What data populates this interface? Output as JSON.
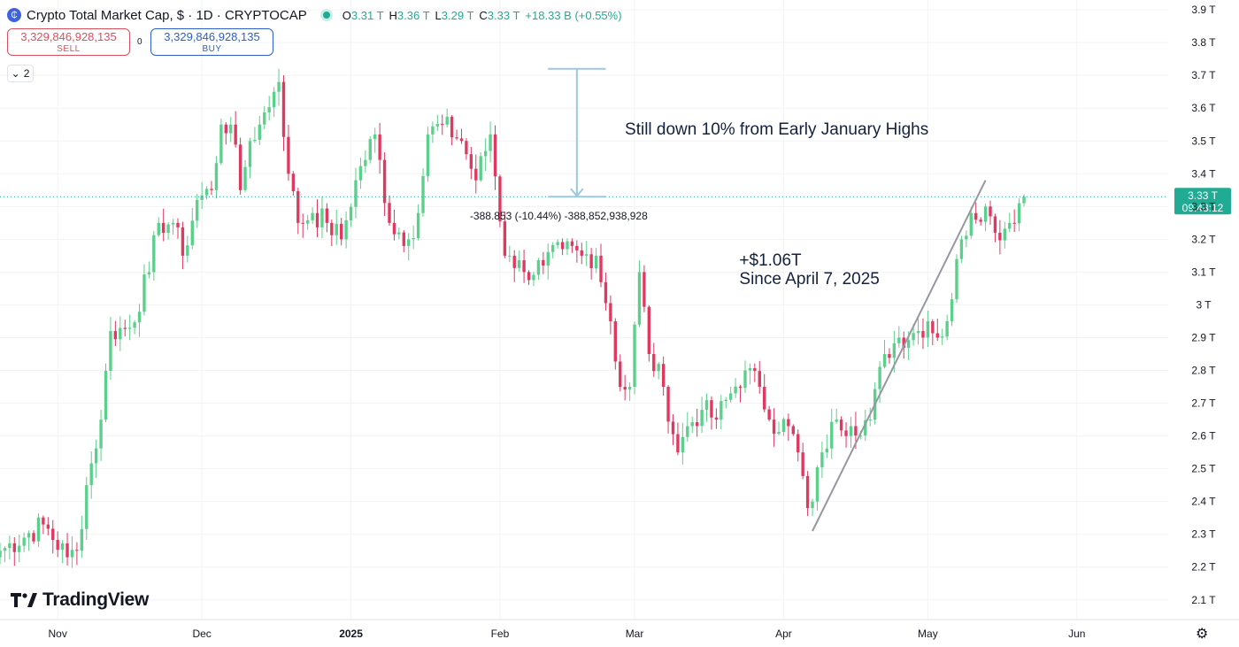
{
  "header": {
    "symbol_title": "Crypto Total Market Cap, $ · 1D · CRYPTOCAP",
    "open_label": "O",
    "open": "3.31 T",
    "high_label": "H",
    "high": "3.36 T",
    "low_label": "L",
    "low": "3.29 T",
    "close_label": "C",
    "close": "3.33 T",
    "change": "+18.33 B (+0.55%)"
  },
  "trade": {
    "sell_value": "3,329,846,928,135",
    "sell_label": "SELL",
    "spread": "0",
    "buy_value": "3,329,846,928,135",
    "buy_label": "BUY"
  },
  "indicators_count": "2",
  "logo_text": "TradingView",
  "colors": {
    "up": "#5bd08a",
    "down": "#e0385f",
    "price_line": "#22ab94",
    "annotation": "#14213d",
    "measure": "#9cc8e0"
  },
  "chart_data": {
    "type": "candlestick",
    "x_range": [
      "2024-10-20",
      "2025-06-20"
    ],
    "y_range": [
      2.04,
      3.93
    ],
    "y_ticks": [
      2.1,
      2.2,
      2.3,
      2.4,
      2.5,
      2.6,
      2.7,
      2.8,
      2.9,
      3.0,
      3.1,
      3.2,
      3.3,
      3.4,
      3.5,
      3.6,
      3.7,
      3.8,
      3.9
    ],
    "y_tick_labels": [
      "2.1 T",
      "2.2 T",
      "2.3 T",
      "2.4 T",
      "2.5 T",
      "2.6 T",
      "2.7 T",
      "2.8 T",
      "2.9 T",
      "3 T",
      "3.1 T",
      "3.2 T",
      "3.3 T",
      "3.4 T",
      "3.5 T",
      "3.6 T",
      "3.7 T",
      "3.8 T",
      "3.9 T"
    ],
    "x_ticks": [
      {
        "date": "2024-11-01",
        "label": "Nov"
      },
      {
        "date": "2024-12-01",
        "label": "Dec"
      },
      {
        "date": "2025-01-01",
        "label": "2025"
      },
      {
        "date": "2025-02-01",
        "label": "Feb"
      },
      {
        "date": "2025-03-01",
        "label": "Mar"
      },
      {
        "date": "2025-04-01",
        "label": "Apr"
      },
      {
        "date": "2025-05-01",
        "label": "May"
      },
      {
        "date": "2025-06-01",
        "label": "Jun"
      }
    ],
    "anchors": [
      [
        "2024-10-20",
        2.25
      ],
      [
        "2024-10-29",
        2.33
      ],
      [
        "2024-11-03",
        2.23
      ],
      [
        "2024-11-05",
        2.25
      ],
      [
        "2024-11-07",
        2.45
      ],
      [
        "2024-11-10",
        2.65
      ],
      [
        "2024-11-12",
        2.92
      ],
      [
        "2024-11-16",
        2.93
      ],
      [
        "2024-11-20",
        3.1
      ],
      [
        "2024-11-22",
        3.25
      ],
      [
        "2024-11-25",
        3.25
      ],
      [
        "2024-11-27",
        3.15
      ],
      [
        "2024-11-30",
        3.32
      ],
      [
        "2024-12-03",
        3.35
      ],
      [
        "2024-12-05",
        3.55
      ],
      [
        "2024-12-07",
        3.55
      ],
      [
        "2024-12-09",
        3.35
      ],
      [
        "2024-12-11",
        3.5
      ],
      [
        "2024-12-13",
        3.55
      ],
      [
        "2024-12-16",
        3.65
      ],
      [
        "2024-12-17",
        3.68
      ],
      [
        "2024-12-19",
        3.4
      ],
      [
        "2024-12-21",
        3.25
      ],
      [
        "2024-12-24",
        3.28
      ],
      [
        "2024-12-27",
        3.25
      ],
      [
        "2024-12-30",
        3.2
      ],
      [
        "2025-01-02",
        3.38
      ],
      [
        "2025-01-06",
        3.52
      ],
      [
        "2025-01-09",
        3.25
      ],
      [
        "2025-01-13",
        3.2
      ],
      [
        "2025-01-15",
        3.28
      ],
      [
        "2025-01-17",
        3.52
      ],
      [
        "2025-01-20",
        3.55
      ],
      [
        "2025-01-24",
        3.5
      ],
      [
        "2025-01-27",
        3.38
      ],
      [
        "2025-01-30",
        3.52
      ],
      [
        "2025-02-02",
        3.15
      ],
      [
        "2025-02-03",
        3.15
      ],
      [
        "2025-02-06",
        3.1
      ],
      [
        "2025-02-10",
        3.12
      ],
      [
        "2025-02-14",
        3.17
      ],
      [
        "2025-02-18",
        3.15
      ],
      [
        "2025-02-21",
        3.15
      ],
      [
        "2025-02-24",
        2.95
      ],
      [
        "2025-02-26",
        2.75
      ],
      [
        "2025-02-28",
        2.75
      ],
      [
        "2025-03-02",
        3.1
      ],
      [
        "2025-03-04",
        2.85
      ],
      [
        "2025-03-07",
        2.75
      ],
      [
        "2025-03-10",
        2.55
      ],
      [
        "2025-03-12",
        2.63
      ],
      [
        "2025-03-15",
        2.68
      ],
      [
        "2025-03-18",
        2.65
      ],
      [
        "2025-03-21",
        2.73
      ],
      [
        "2025-03-24",
        2.8
      ],
      [
        "2025-03-27",
        2.75
      ],
      [
        "2025-03-29",
        2.65
      ],
      [
        "2025-04-02",
        2.63
      ],
      [
        "2025-04-04",
        2.55
      ],
      [
        "2025-04-06",
        2.38
      ],
      [
        "2025-04-07",
        2.4
      ],
      [
        "2025-04-09",
        2.55
      ],
      [
        "2025-04-12",
        2.65
      ],
      [
        "2025-04-15",
        2.63
      ],
      [
        "2025-04-19",
        2.65
      ],
      [
        "2025-04-22",
        2.85
      ],
      [
        "2025-04-25",
        2.9
      ],
      [
        "2025-04-29",
        2.92
      ],
      [
        "2025-05-01",
        2.95
      ],
      [
        "2025-05-03",
        2.9
      ],
      [
        "2025-05-05",
        2.95
      ],
      [
        "2025-05-08",
        3.2
      ],
      [
        "2025-05-10",
        3.28
      ],
      [
        "2025-05-13",
        3.3
      ],
      [
        "2025-05-15",
        3.22
      ],
      [
        "2025-05-18",
        3.25
      ],
      [
        "2025-05-20",
        3.31
      ],
      [
        "2025-05-21",
        3.33
      ]
    ],
    "last_price_label": "3.33 T",
    "countdown_label": "09:48:12",
    "last_price": 3.33,
    "measure": {
      "top_price": 3.72,
      "bottom_price": 3.33,
      "date_start": "2025-02-11",
      "date_end": "2025-02-23",
      "label_date": "2025-02-01",
      "label_value": "-388.853 (-10.44%) -388,852,938,928"
    },
    "trendline": {
      "from": [
        "2025-04-07",
        2.31
      ],
      "to": [
        "2025-05-13",
        3.38
      ]
    },
    "annotations": [
      {
        "text": "Still down 10% from Early January Highs",
        "date": "2025-03-01",
        "price": 3.52,
        "lines": [
          "Still down 10% from Early January Highs"
        ]
      },
      {
        "text": "+$1.06T Since April 7, 2025",
        "date": "2025-03-25",
        "price": 3.12,
        "lines": [
          "+$1.06T",
          "Since April 7, 2025"
        ]
      }
    ]
  }
}
